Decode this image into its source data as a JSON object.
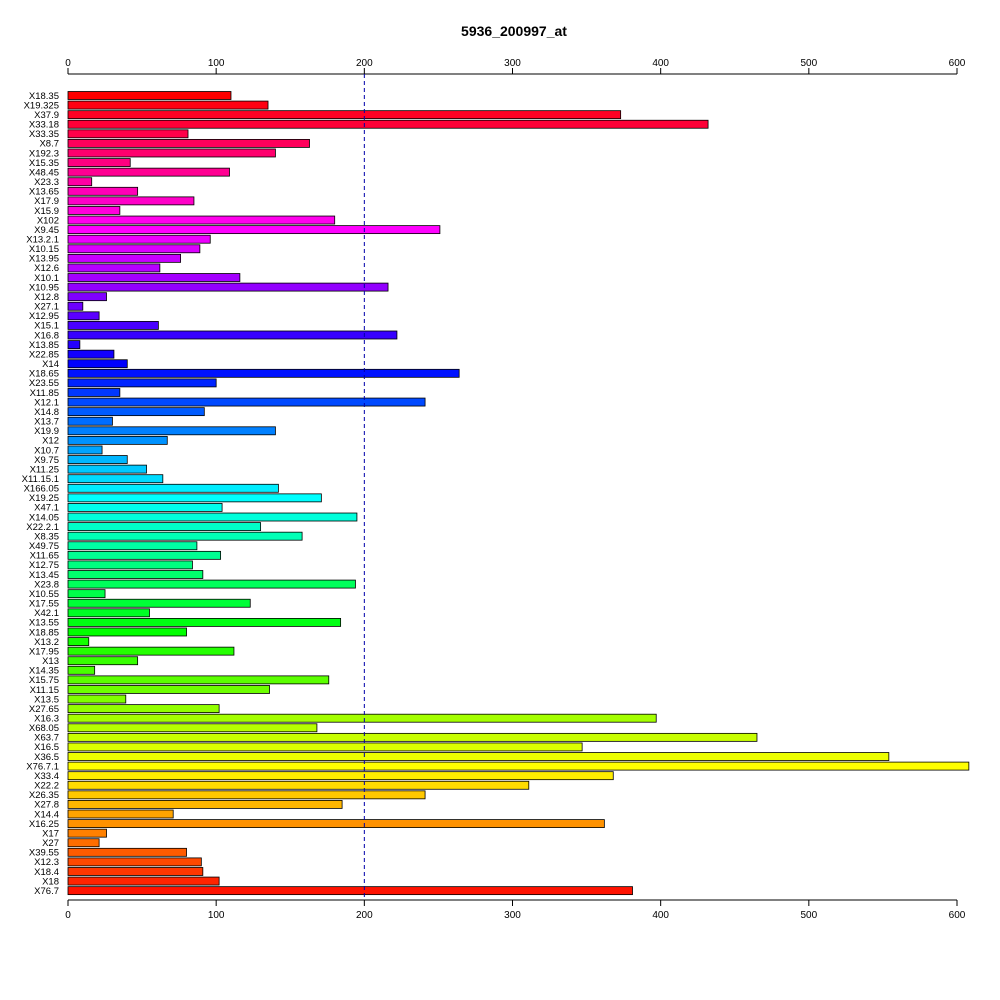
{
  "chart_data": {
    "type": "bar",
    "orientation": "horizontal",
    "title": "5936_200997_at",
    "xlabel": "",
    "ylabel": "",
    "xlim": [
      0,
      600
    ],
    "x_ticks": [
      0,
      100,
      200,
      300,
      400,
      500,
      600
    ],
    "tick_labels": [
      "0",
      "100",
      "200",
      "300",
      "400",
      "500",
      "600"
    ],
    "axes": "top-and-bottom",
    "reference_line": {
      "value": 200,
      "style": "dashed",
      "color": "#0000aa"
    },
    "grid": false,
    "legend": "none",
    "color_scheme": "rainbow",
    "categories": [
      "X18.35",
      "X19.325",
      "X37.9",
      "X33.18",
      "X33.35",
      "X8.7",
      "X192.3",
      "X15.35",
      "X48.45",
      "X23.3",
      "X13.65",
      "X17.9",
      "X15.9",
      "X102",
      "X9.45",
      "X13.2.1",
      "X10.15",
      "X13.95",
      "X12.6",
      "X10.1",
      "X10.95",
      "X12.8",
      "X27.1",
      "X12.95",
      "X15.1",
      "X16.8",
      "X13.85",
      "X22.85",
      "X14",
      "X18.65",
      "X23.55",
      "X11.85",
      "X12.1",
      "X14.8",
      "X13.7",
      "X19.9",
      "X12",
      "X10.7",
      "X9.75",
      "X11.25",
      "X11.15.1",
      "X166.05",
      "X19.25",
      "X47.1",
      "X14.05",
      "X22.2.1",
      "X8.35",
      "X49.75",
      "X11.65",
      "X12.75",
      "X13.45",
      "X23.8",
      "X10.55",
      "X17.55",
      "X42.1",
      "X13.55",
      "X18.85",
      "X13.2",
      "X17.95",
      "X13",
      "X14.35",
      "X15.75",
      "X11.15",
      "X13.5",
      "X27.65",
      "X16.3",
      "X68.05",
      "X63.7",
      "X16.5",
      "X36.5",
      "X76.7.1",
      "X33.4",
      "X22.2",
      "X26.35",
      "X27.8",
      "X14.4",
      "X16.25",
      "X17",
      "X27",
      "X39.55",
      "X12.3",
      "X18.4",
      "X18",
      "X76.7"
    ],
    "values": [
      110,
      135,
      373,
      432,
      81,
      163,
      140,
      42,
      109,
      16,
      47,
      85,
      35,
      180,
      251,
      96,
      89,
      76,
      62,
      116,
      216,
      26,
      10,
      21,
      61,
      222,
      8,
      31,
      40,
      264,
      100,
      35,
      241,
      92,
      30,
      140,
      67,
      23,
      40,
      53,
      64,
      142,
      171,
      104,
      195,
      130,
      158,
      87,
      103,
      84,
      91,
      194,
      25,
      123,
      55,
      184,
      80,
      14,
      112,
      47,
      18,
      176,
      136,
      39,
      102,
      397,
      168,
      465,
      347,
      554,
      608,
      368,
      311,
      241,
      185,
      71,
      362,
      26,
      21,
      80,
      90,
      91,
      102,
      381
    ]
  }
}
